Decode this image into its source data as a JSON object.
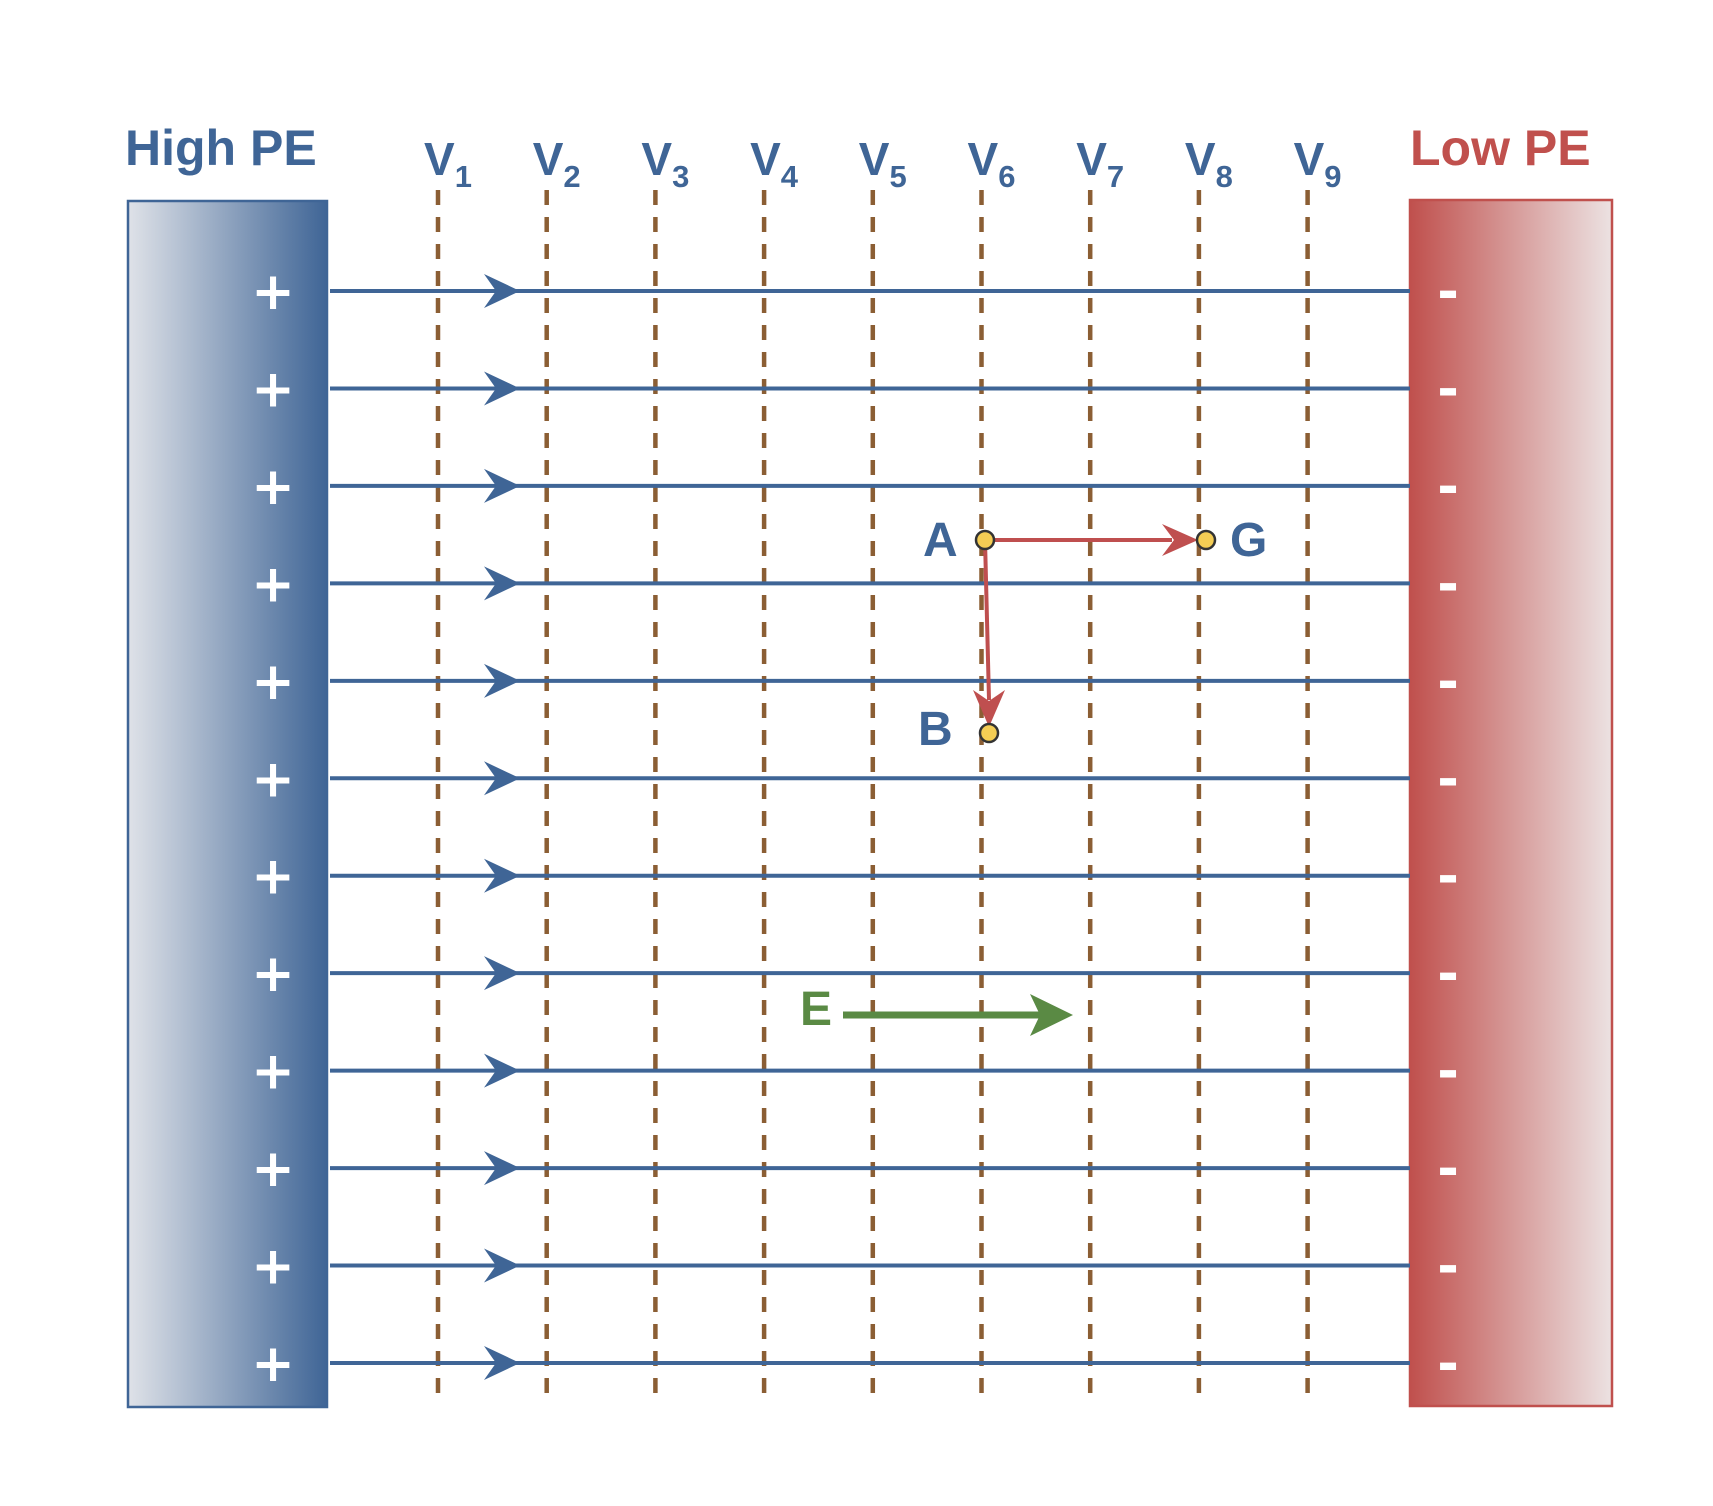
{
  "left_plate": {
    "title": "High PE",
    "sign": "+",
    "sign_count": 12,
    "color": "#3f6596",
    "fill_light": "#dfe2e8"
  },
  "right_plate": {
    "title": "Low PE",
    "sign": "-",
    "sign_count": 12,
    "color": "#c0504d",
    "fill_light": "#ece2e2"
  },
  "field_lines": {
    "count": 12,
    "color": "#3f6596"
  },
  "equipotentials": {
    "letter": "V",
    "subscripts": [
      "1",
      "2",
      "3",
      "4",
      "5",
      "6",
      "7",
      "8",
      "9"
    ],
    "color": "#8b5e34",
    "label_color": "#3f6596"
  },
  "points": [
    {
      "label": "A",
      "color": "#3f6596"
    },
    {
      "label": "B",
      "color": "#3f6596"
    },
    {
      "label": "G",
      "color": "#3f6596"
    }
  ],
  "point_fill": "#f4cd54",
  "displacement_color": "#bf4f4f",
  "field_vector": {
    "label": "E",
    "color": "#5a8a44"
  }
}
